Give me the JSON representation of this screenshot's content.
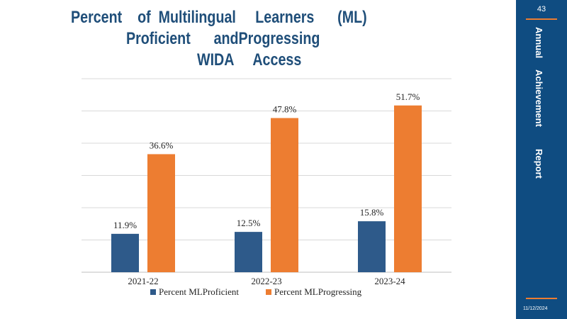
{
  "slide": {
    "title_lines": [
      "Percent    of  Multilingual     Learners      (ML)",
      "Proficient      andProgressing",
      "WIDA     Access"
    ],
    "page_number": "43",
    "sidebar_words": [
      "Annual",
      "Achievement",
      "Report"
    ],
    "date": "11/12/2024",
    "colors": {
      "sidebar": "#0f4c81",
      "accent": "#ed7d31",
      "title": "#1f4e79"
    }
  },
  "chart_data": {
    "type": "bar",
    "title": "Percent    of  Multilingual     Learners      (ML) Proficient      andProgressing WIDA     Access",
    "categories": [
      "2021-22",
      "2022-23",
      "2023-24"
    ],
    "series": [
      {
        "name": "Percent MLProficient",
        "values": [
          11.9,
          12.5,
          15.8
        ],
        "labels": [
          "11.9%",
          "12.5%",
          "15.8%"
        ],
        "color": "#2e5a8a"
      },
      {
        "name": "Percent  MLProgressing",
        "values": [
          36.6,
          47.8,
          51.7
        ],
        "labels": [
          "36.6%",
          "47.8%",
          "51.7%"
        ],
        "color": "#ed7d31"
      }
    ],
    "ylim": [
      0,
      60
    ],
    "grid": true,
    "legend": "bottom",
    "xlabel": "",
    "ylabel": ""
  }
}
